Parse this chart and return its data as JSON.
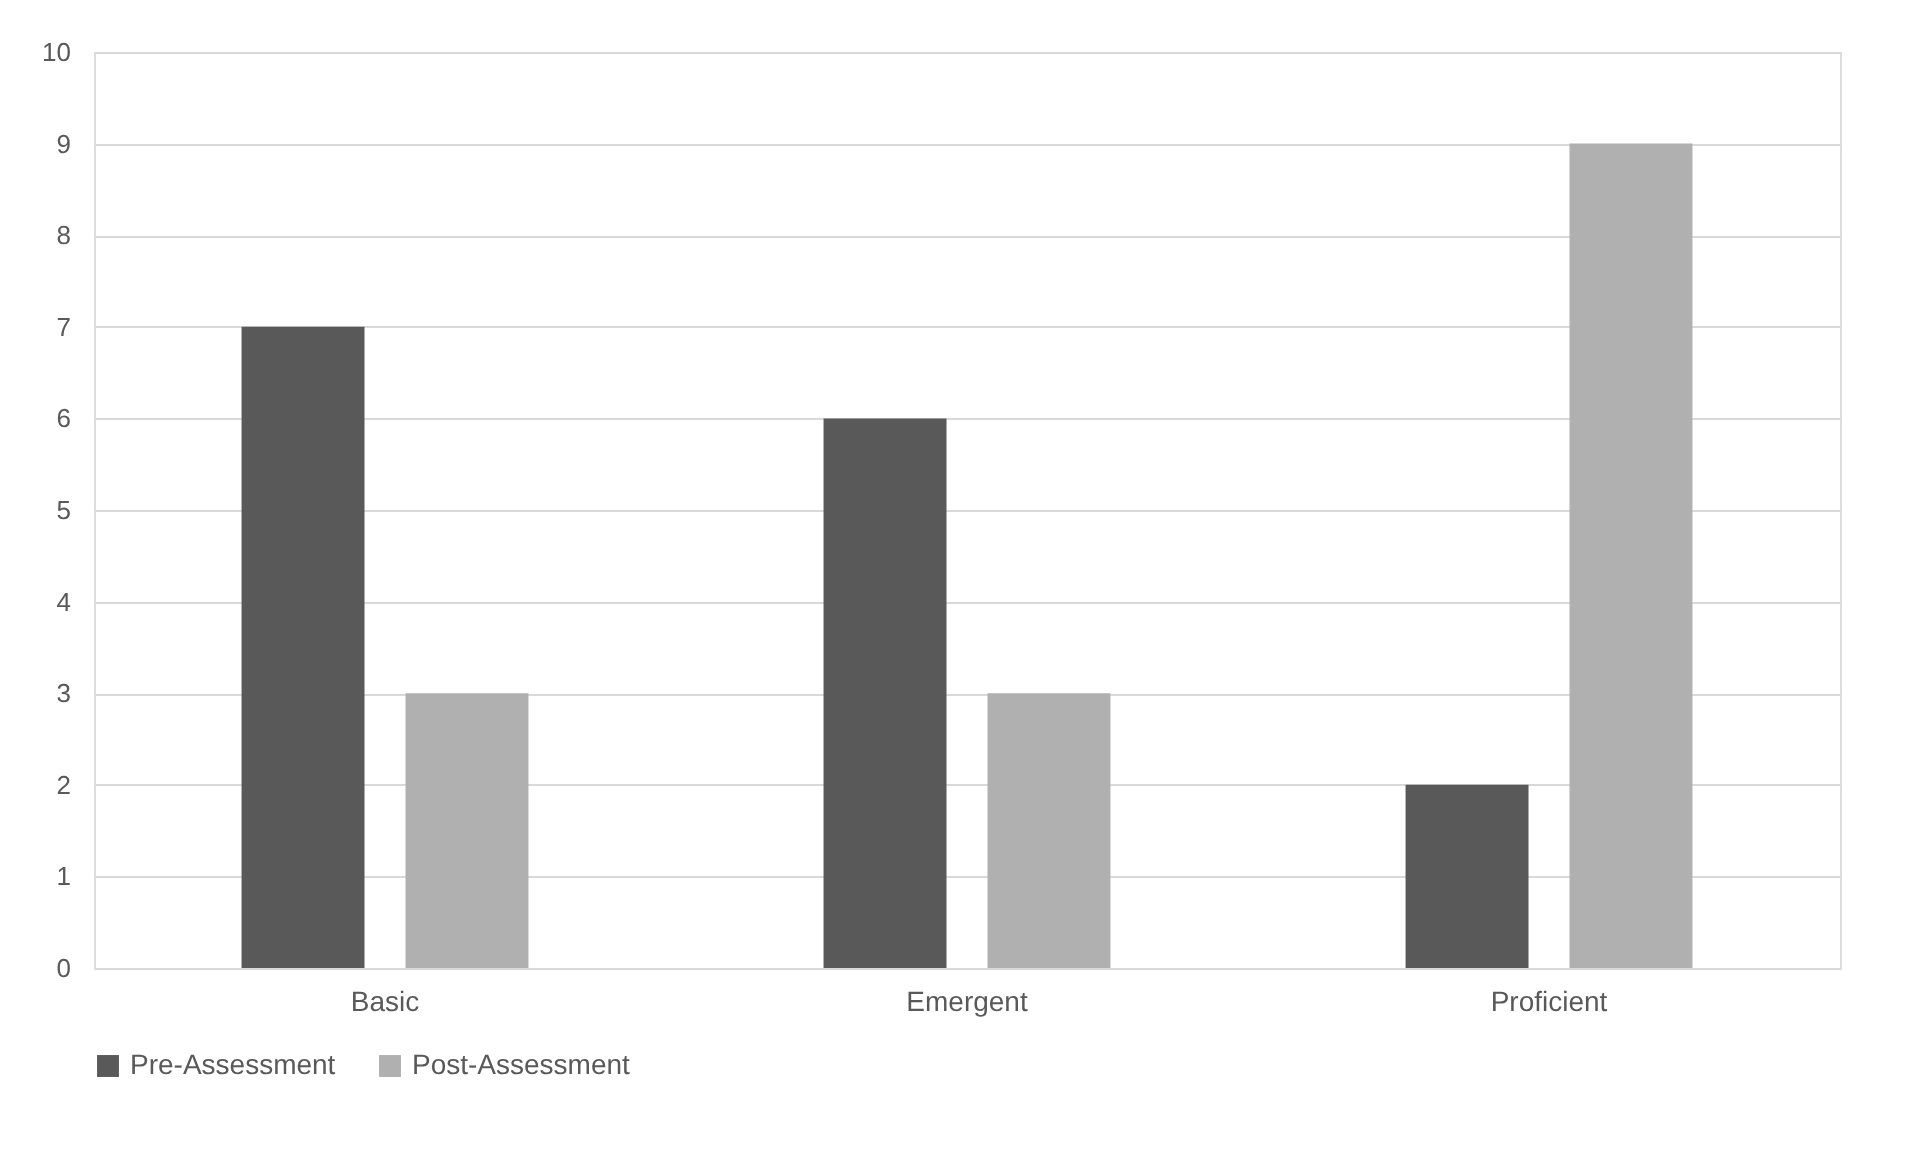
{
  "chart_data": {
    "type": "bar",
    "categories": [
      "Basic",
      "Emergent",
      "Proficient"
    ],
    "series": [
      {
        "name": "Pre-Assessment",
        "color": "#595959",
        "values": [
          7,
          6,
          2
        ]
      },
      {
        "name": "Post-Assessment",
        "color": "#b0b0b0",
        "values": [
          3,
          3,
          9
        ]
      }
    ],
    "ylim": [
      0,
      10
    ],
    "yticks": [
      0,
      1,
      2,
      3,
      4,
      5,
      6,
      7,
      8,
      9,
      10
    ],
    "grid": "y",
    "legend": "bottom"
  }
}
